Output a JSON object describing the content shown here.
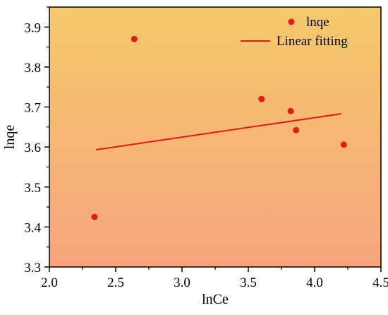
{
  "chart_data": {
    "type": "scatter",
    "title": "",
    "xlabel": "lnCe",
    "ylabel": "lnqe",
    "xlim": [
      2.0,
      4.5
    ],
    "ylim": [
      3.3,
      3.95
    ],
    "x_ticks": [
      "2.0",
      "2.5",
      "3.0",
      "3.5",
      "4.0",
      "4.5"
    ],
    "y_ticks": [
      "3.3",
      "3.4",
      "3.5",
      "3.6",
      "3.7",
      "3.8",
      "3.9"
    ],
    "x_tick_values": [
      2.0,
      2.5,
      3.0,
      3.5,
      4.0,
      4.5
    ],
    "y_tick_values": [
      3.3,
      3.4,
      3.5,
      3.6,
      3.7,
      3.8,
      3.9
    ],
    "grid": false,
    "legend_position": "top-right",
    "series": [
      {
        "name": "lnqe",
        "kind": "scatter",
        "color": "#e31a1c",
        "points": [
          {
            "x": 2.34,
            "y": 3.425
          },
          {
            "x": 2.64,
            "y": 3.87
          },
          {
            "x": 3.6,
            "y": 3.72
          },
          {
            "x": 3.82,
            "y": 3.69
          },
          {
            "x": 3.86,
            "y": 3.642
          },
          {
            "x": 4.22,
            "y": 3.606
          }
        ]
      },
      {
        "name": "Linear fitting",
        "kind": "line",
        "color": "#e31a1c",
        "points": [
          {
            "x": 2.35,
            "y": 3.593
          },
          {
            "x": 4.2,
            "y": 3.683
          }
        ]
      }
    ],
    "background_gradient": [
      "#f5c96a",
      "#f7a47e"
    ]
  }
}
